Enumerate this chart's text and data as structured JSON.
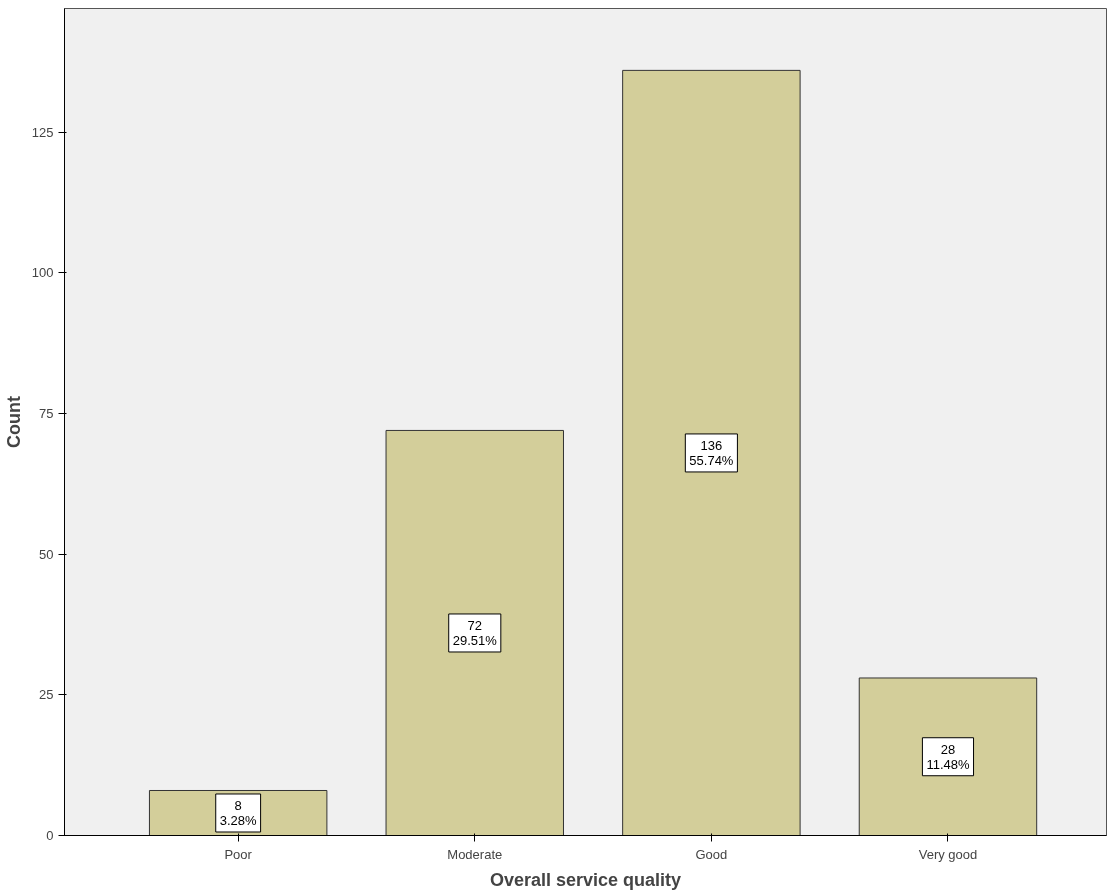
{
  "chart_data": {
    "type": "bar",
    "xlabel": "Overall service quality",
    "ylabel": "Count",
    "categories": [
      "Poor",
      "Moderate",
      "Good",
      "Very good"
    ],
    "values": [
      8,
      72,
      136,
      28
    ],
    "color": "#d3ce9a",
    "value_labels": [
      "8\n3.28%",
      "72\n29.51%",
      "136\n55.74%",
      "28\n11.48%"
    ],
    "ylim": [
      0,
      147
    ],
    "yticks": [
      0,
      25,
      50,
      75,
      100,
      125
    ],
    "grid": false
  }
}
